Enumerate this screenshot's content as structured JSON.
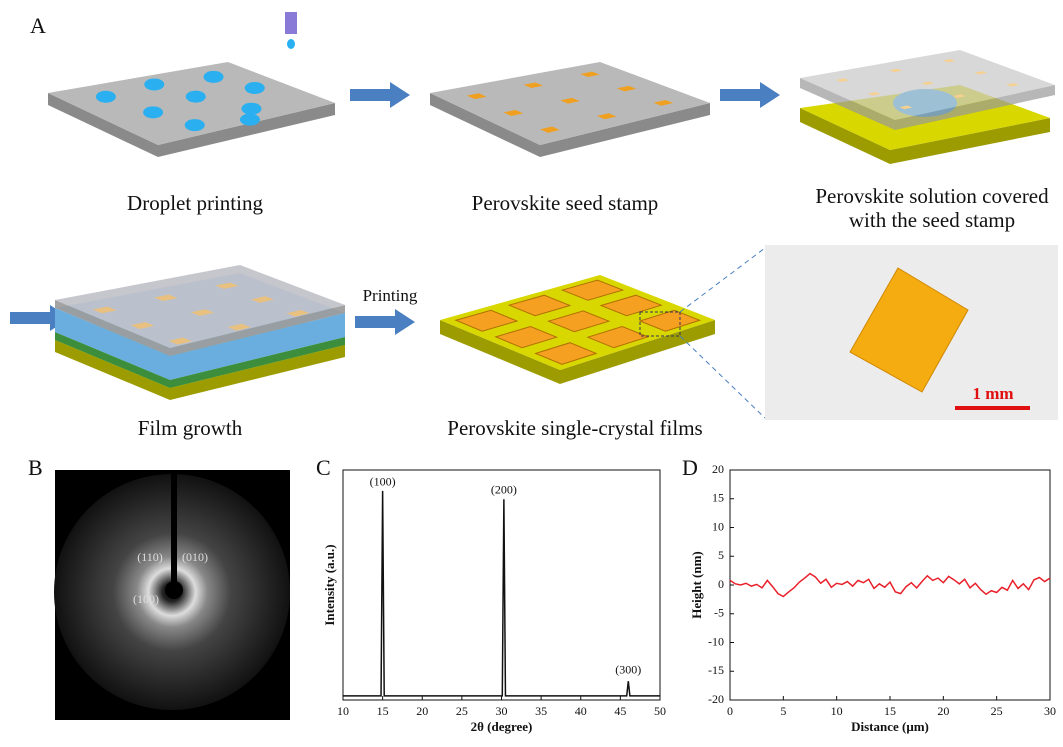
{
  "figure": {
    "panel_labels": [
      "A",
      "B",
      "C",
      "D"
    ],
    "captions": {
      "droplet": "Droplet printing",
      "seed": "Perovskite seed stamp",
      "covered": [
        "Perovskite solution covered",
        "with the seed stamp"
      ],
      "growth": "Film growth",
      "films": "Perovskite single-crystal films",
      "printing": "Printing",
      "scale_bar": "1 mm"
    },
    "saed_labels": [
      "(110)",
      "(010)",
      "(100)"
    ]
  },
  "chart_data": [
    {
      "type": "line",
      "xlabel": "2θ (degree)",
      "ylabel": "Intensity (a.u.)",
      "color": "#111111",
      "x": [
        10,
        14.8,
        15,
        15.2,
        30.1,
        30.3,
        30.5,
        45.8,
        46,
        46.2,
        50
      ],
      "values": [
        2,
        2,
        100,
        2,
        2,
        96,
        2,
        2,
        9,
        2,
        2
      ],
      "xlim": [
        10,
        50
      ],
      "ylim": [
        0,
        110
      ],
      "xticks": [
        10,
        15,
        20,
        25,
        30,
        35,
        40,
        45,
        50
      ],
      "annotations": [
        {
          "text": "(100)",
          "x": 15,
          "y": 104
        },
        {
          "text": "(200)",
          "x": 30.3,
          "y": 100
        },
        {
          "text": "(300)",
          "x": 46,
          "y": 14
        }
      ]
    },
    {
      "type": "line",
      "xlabel": "Distance (μm)",
      "ylabel": "Height (nm)",
      "color": "#e8202a",
      "x": [
        0,
        0.5,
        1,
        1.5,
        2,
        2.5,
        3,
        3.5,
        4,
        4.5,
        5,
        5.5,
        6,
        6.5,
        7,
        7.5,
        8,
        8.5,
        9,
        9.5,
        10,
        10.5,
        11,
        11.5,
        12,
        12.5,
        13,
        13.5,
        14,
        14.5,
        15,
        15.5,
        16,
        16.5,
        17,
        17.5,
        18,
        18.5,
        19,
        19.5,
        20,
        20.5,
        21,
        21.5,
        22,
        22.5,
        23,
        23.5,
        24,
        24.5,
        25,
        25.5,
        26,
        26.5,
        27,
        27.5,
        28,
        28.5,
        29,
        29.5,
        30
      ],
      "values": [
        0.8,
        0.2,
        0,
        0.3,
        -0.2,
        0.1,
        -0.5,
        0.8,
        -0.3,
        -1.5,
        -2,
        -1.2,
        -0.5,
        0.5,
        1.2,
        2,
        1.4,
        0.3,
        1,
        -0.4,
        0.3,
        0.1,
        0.6,
        -0.2,
        0.8,
        0.4,
        1,
        -0.6,
        0.2,
        -0.4,
        0.5,
        -1.2,
        -1.5,
        -0.3,
        0.4,
        -0.5,
        0.6,
        1.6,
        0.8,
        1.2,
        0.4,
        1.5,
        0.9,
        0.2,
        1,
        -0.5,
        0.3,
        -0.8,
        -1.6,
        -1,
        -1.3,
        -0.4,
        -0.9,
        0.8,
        -0.6,
        0.2,
        -0.8,
        0.9,
        1.3,
        0.6,
        1.2
      ],
      "xlim": [
        0,
        30
      ],
      "ylim": [
        -20,
        20
      ],
      "xticks": [
        0,
        5,
        10,
        15,
        20,
        25,
        30
      ],
      "yticks": [
        -20,
        -15,
        -10,
        -5,
        0,
        5,
        10,
        15,
        20
      ]
    }
  ]
}
